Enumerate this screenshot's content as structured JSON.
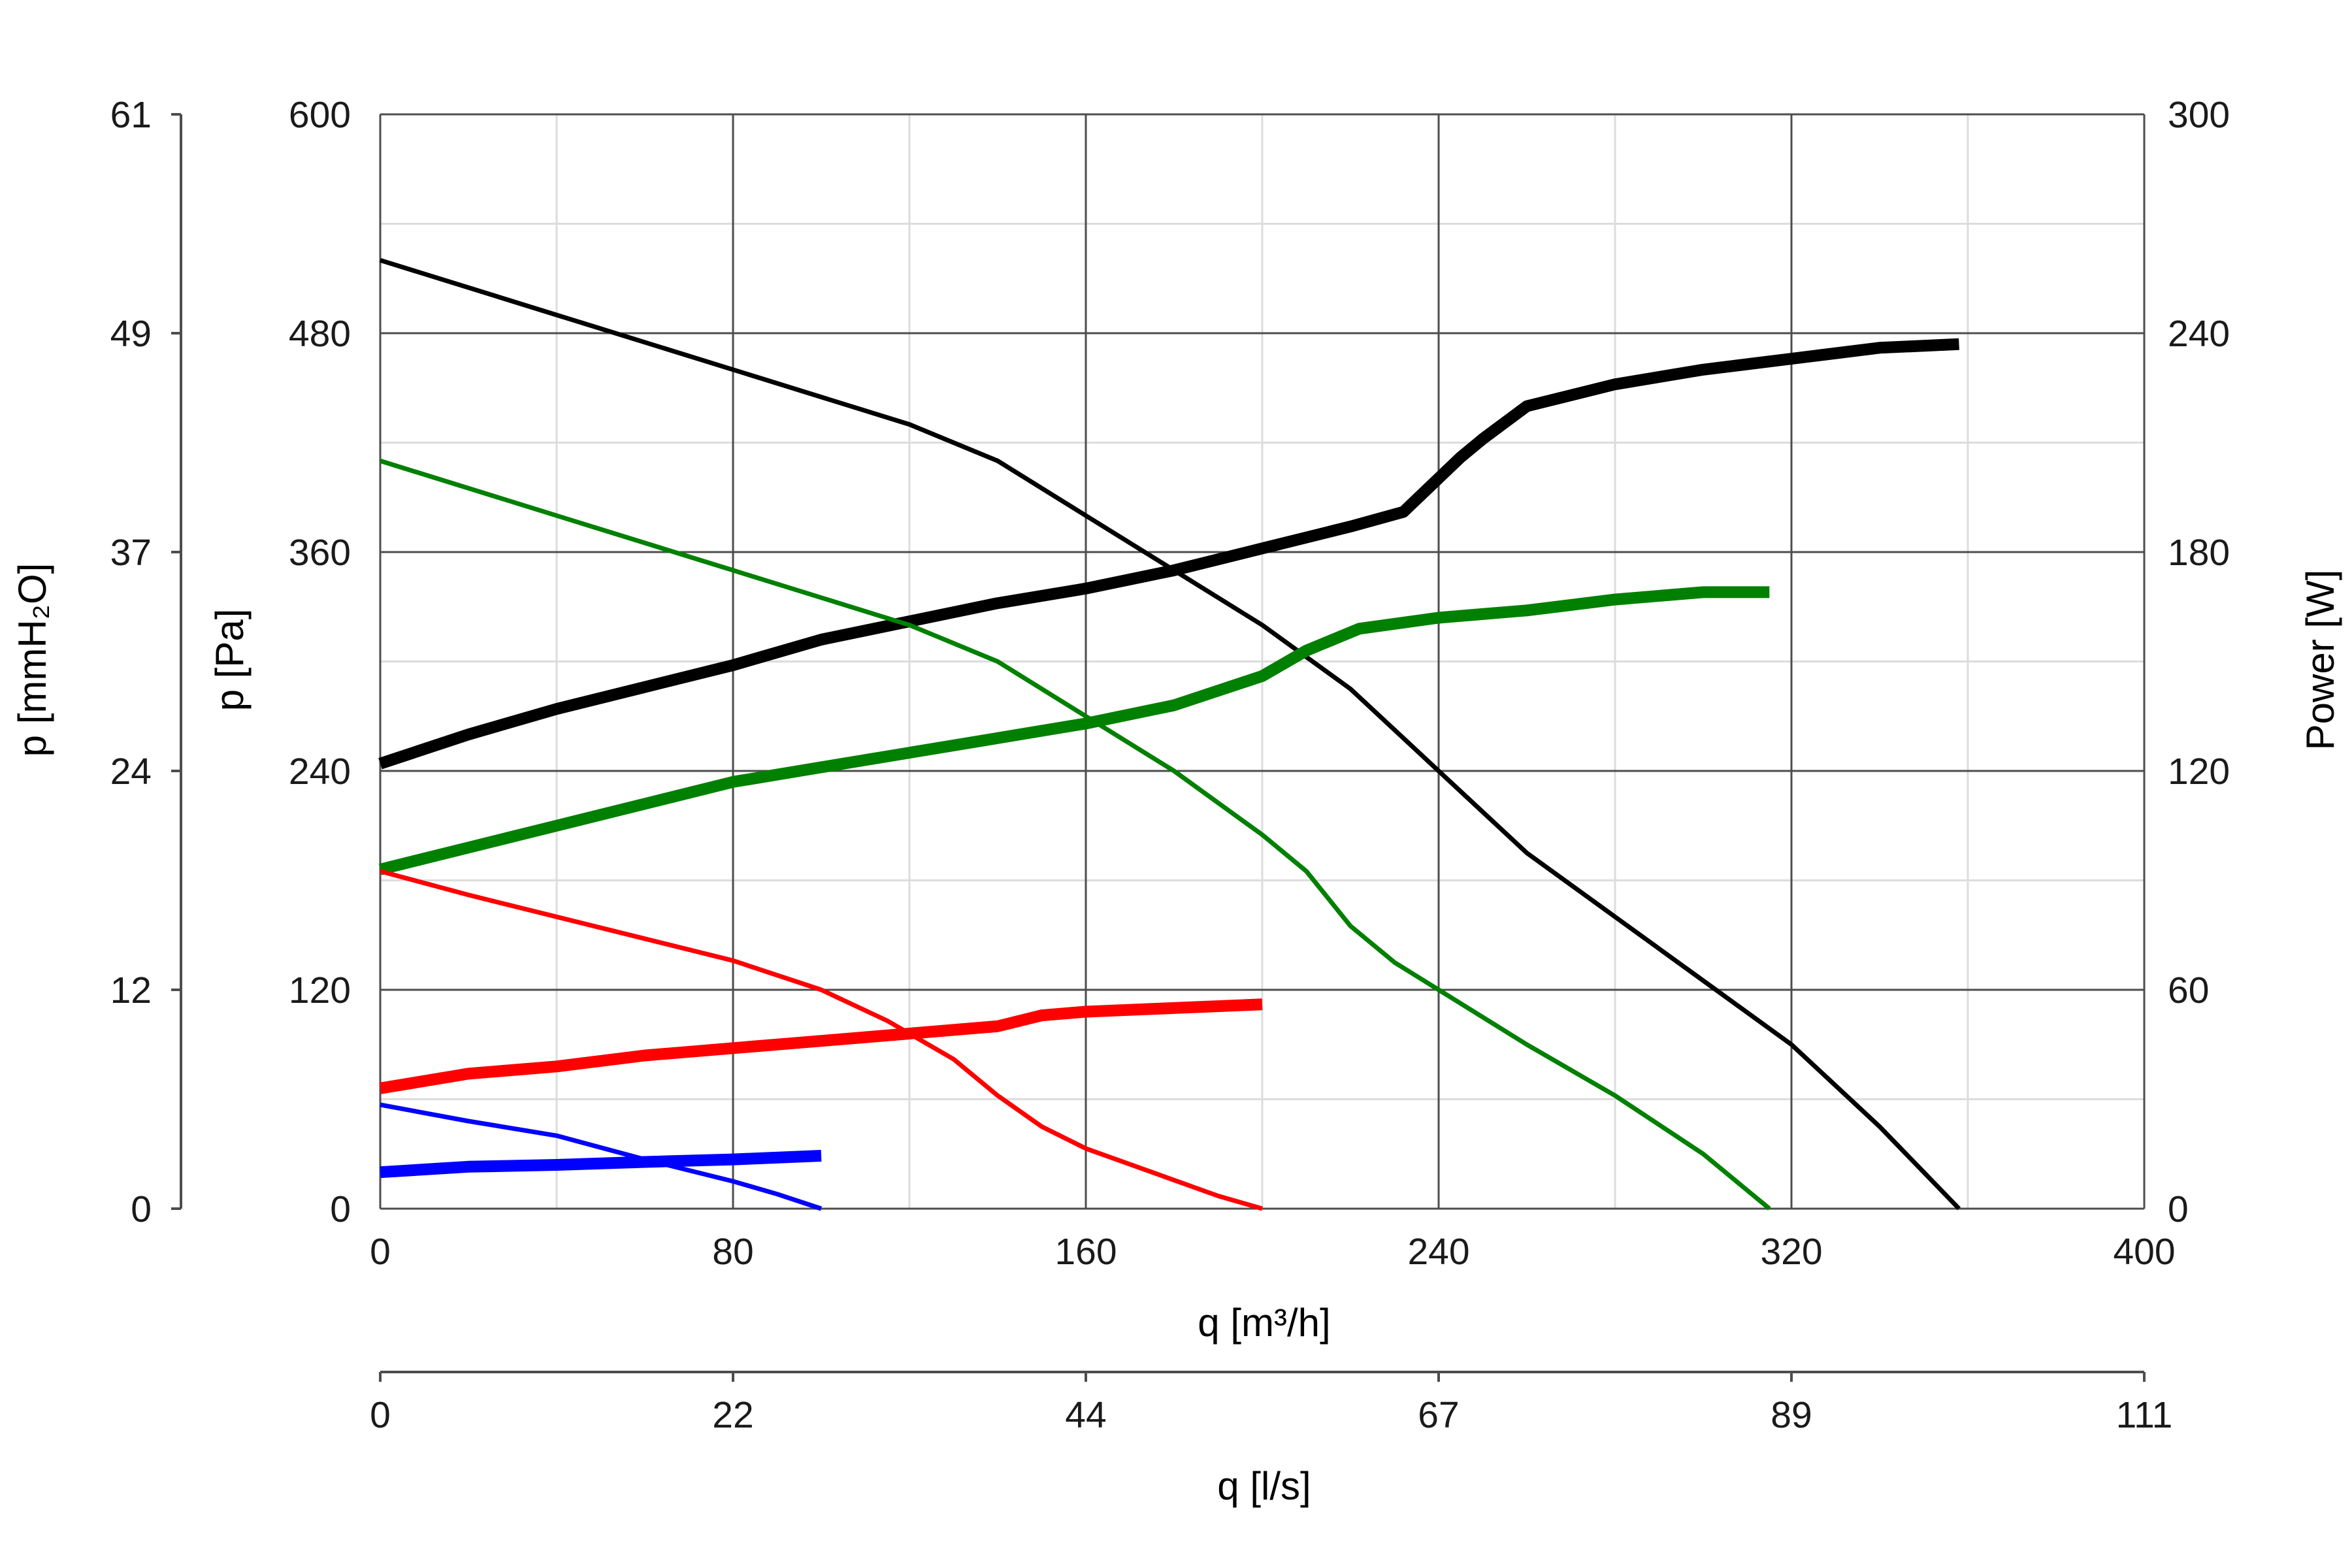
{
  "chart_data": {
    "type": "line",
    "x_unit_label": "q [m³/h]",
    "x2_unit_label": "q [l/s]",
    "y_left_label": "p [Pa]",
    "y_outer_label": "p [mmH₂O]",
    "y_right_label": "Power [W]",
    "xlim": [
      0,
      400
    ],
    "ylim": [
      0,
      600
    ],
    "y_right_lim": [
      0,
      300
    ],
    "grid": true,
    "x_ticks": [
      0,
      80,
      160,
      240,
      320,
      400
    ],
    "x_ticks_labels": [
      "0",
      "80",
      "160",
      "240",
      "320",
      "400"
    ],
    "x2_ticks_labels": [
      "0",
      "22",
      "44",
      "67",
      "89",
      "111"
    ],
    "y_ticks_labels": [
      "0",
      "120",
      "240",
      "360",
      "480",
      "600"
    ],
    "y_outer_ticks_labels": [
      "0",
      "12",
      "24",
      "37",
      "49",
      "61"
    ],
    "y_right_ticks_labels": [
      "0",
      "60",
      "120",
      "180",
      "240",
      "300"
    ],
    "series": [
      {
        "color": "#000000",
        "kind": "pressure",
        "points": [
          [
            0,
            520
          ],
          [
            40,
            490
          ],
          [
            80,
            460
          ],
          [
            120,
            430
          ],
          [
            140,
            410
          ],
          [
            160,
            380
          ],
          [
            180,
            350
          ],
          [
            200,
            320
          ],
          [
            220,
            285
          ],
          [
            240,
            240
          ],
          [
            260,
            195
          ],
          [
            280,
            160
          ],
          [
            300,
            125
          ],
          [
            320,
            90
          ],
          [
            340,
            45
          ],
          [
            358,
            0
          ]
        ]
      },
      {
        "color": "#000000",
        "kind": "power",
        "points": [
          [
            0,
            122
          ],
          [
            20,
            130
          ],
          [
            40,
            137
          ],
          [
            60,
            143
          ],
          [
            80,
            149
          ],
          [
            100,
            156
          ],
          [
            120,
            161
          ],
          [
            140,
            166
          ],
          [
            160,
            170
          ],
          [
            180,
            175
          ],
          [
            200,
            181
          ],
          [
            220,
            187
          ],
          [
            232,
            191
          ],
          [
            245,
            206
          ],
          [
            250,
            211
          ],
          [
            260,
            220
          ],
          [
            280,
            226
          ],
          [
            300,
            230
          ],
          [
            320,
            233
          ],
          [
            340,
            236
          ],
          [
            358,
            237
          ]
        ]
      },
      {
        "color": "#008000",
        "kind": "pressure",
        "points": [
          [
            0,
            410
          ],
          [
            40,
            380
          ],
          [
            80,
            350
          ],
          [
            120,
            320
          ],
          [
            140,
            300
          ],
          [
            160,
            270
          ],
          [
            180,
            240
          ],
          [
            200,
            205
          ],
          [
            210,
            185
          ],
          [
            220,
            155
          ],
          [
            230,
            135
          ],
          [
            240,
            120
          ],
          [
            260,
            90
          ],
          [
            280,
            62
          ],
          [
            300,
            30
          ],
          [
            315,
            0
          ]
        ]
      },
      {
        "color": "#008000",
        "kind": "power",
        "points": [
          [
            0,
            93
          ],
          [
            20,
            99
          ],
          [
            40,
            105
          ],
          [
            60,
            111
          ],
          [
            80,
            117
          ],
          [
            100,
            121
          ],
          [
            120,
            125
          ],
          [
            140,
            129
          ],
          [
            160,
            133
          ],
          [
            180,
            138
          ],
          [
            200,
            146
          ],
          [
            210,
            153
          ],
          [
            222,
            159
          ],
          [
            240,
            162
          ],
          [
            260,
            164
          ],
          [
            280,
            167
          ],
          [
            300,
            169
          ],
          [
            315,
            169
          ]
        ]
      },
      {
        "color": "#ff0000",
        "kind": "pressure",
        "points": [
          [
            0,
            185
          ],
          [
            20,
            172
          ],
          [
            40,
            160
          ],
          [
            60,
            148
          ],
          [
            80,
            136
          ],
          [
            100,
            120
          ],
          [
            115,
            103
          ],
          [
            130,
            82
          ],
          [
            140,
            62
          ],
          [
            150,
            45
          ],
          [
            160,
            33
          ],
          [
            175,
            20
          ],
          [
            190,
            7
          ],
          [
            200,
            0
          ]
        ]
      },
      {
        "color": "#ff0000",
        "kind": "power",
        "points": [
          [
            0,
            33
          ],
          [
            20,
            37
          ],
          [
            40,
            39
          ],
          [
            60,
            42
          ],
          [
            80,
            44
          ],
          [
            100,
            46
          ],
          [
            120,
            48
          ],
          [
            140,
            50
          ],
          [
            150,
            53
          ],
          [
            160,
            54
          ],
          [
            180,
            55
          ],
          [
            200,
            56
          ]
        ]
      },
      {
        "color": "#0000ff",
        "kind": "pressure",
        "points": [
          [
            0,
            57
          ],
          [
            20,
            48
          ],
          [
            40,
            40
          ],
          [
            60,
            27
          ],
          [
            80,
            15
          ],
          [
            90,
            8
          ],
          [
            100,
            0
          ]
        ]
      },
      {
        "color": "#0000ff",
        "kind": "power",
        "points": [
          [
            0,
            10
          ],
          [
            20,
            11.5
          ],
          [
            40,
            12
          ],
          [
            60,
            12.8
          ],
          [
            80,
            13.5
          ],
          [
            100,
            14.5
          ]
        ]
      }
    ]
  }
}
